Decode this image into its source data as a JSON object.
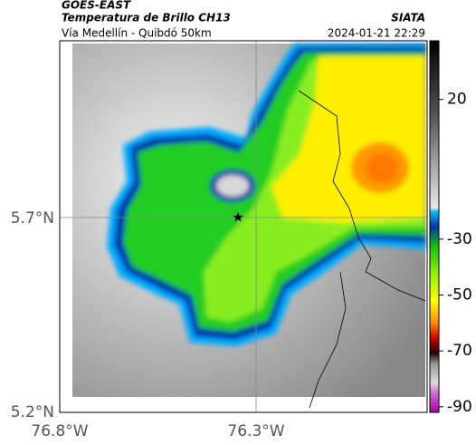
{
  "header": {
    "satellite": "GOES-EAST",
    "product": "Temperatura de Brillo CH13",
    "region": "Vía Medellín - Quibdó 50km",
    "source": "SIATA",
    "datetime": "2024-01-21 22:29"
  },
  "map": {
    "lat_labels": [
      "5.7°N",
      "5.2°N"
    ],
    "lon_labels": [
      "76.8°W",
      "76.3°W"
    ]
  },
  "colorbar": {
    "lim": [
      -92,
      41
    ],
    "ticks": [
      20,
      -30,
      -50,
      -70,
      -90
    ]
  }
}
